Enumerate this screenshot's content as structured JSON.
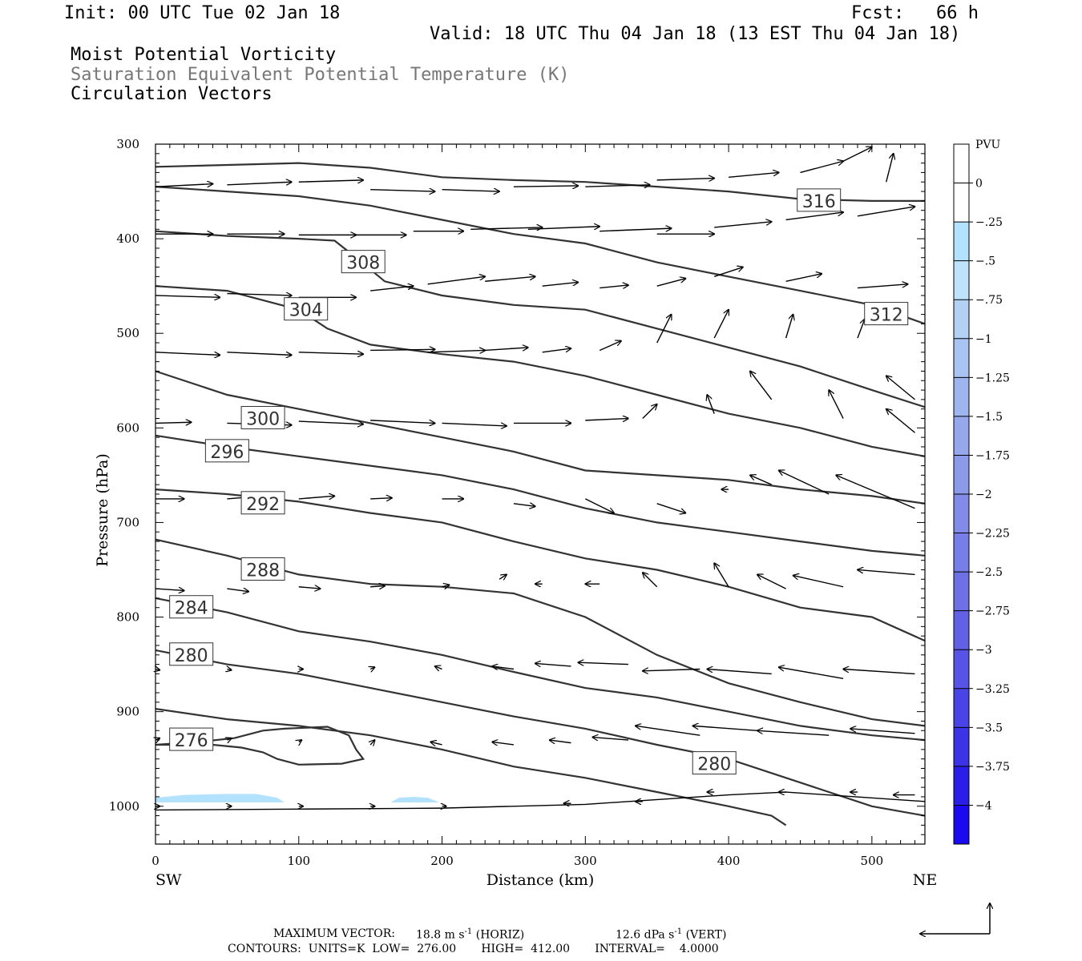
{
  "header": {
    "init": "Init: 00 UTC Tue 02 Jan 18",
    "fcst": "Fcst:   66 h",
    "valid": "Valid: 18 UTC Thu 04 Jan 18 (13 EST Thu 04 Jan 18)",
    "field1": "Moist Potential Vorticity",
    "field2": "Saturation Equivalent Potential Temperature (K)",
    "field3": "Circulation Vectors"
  },
  "footer": {
    "max_vector_label": "MAXIMUM VECTOR:",
    "max_vector_horiz": "18.8 m s",
    "horiz_tag": "(HORIZ)",
    "max_vector_vert": "12.6 dPa s",
    "vert_tag": "(VERT)",
    "exponent": "-1",
    "contours": "CONTOURS:  UNITS=K  LOW=  276.00       HIGH=  412.00       INTERVAL=    4.0000"
  },
  "colors": {
    "contour": "#333333",
    "vector": "#000000",
    "pv_fill": "#b3e2ff"
  },
  "chart_data": {
    "type": "cross-section",
    "xlabel": "Distance (km)",
    "ylabel": "Pressure (hPa)",
    "xlim": [
      0,
      537
    ],
    "ylim": [
      1040,
      300
    ],
    "x_ticks": [
      0,
      100,
      200,
      300,
      400,
      500
    ],
    "y_ticks": [
      300,
      400,
      500,
      600,
      700,
      800,
      900,
      1000
    ],
    "x_end_labels": {
      "left": "SW",
      "right": "NE"
    },
    "colorbar": {
      "unit": "PVU",
      "labels": [
        "0",
        "-.25",
        "-.5",
        "-.75",
        "-1",
        "-1.25",
        "-1.5",
        "-1.75",
        "-2",
        "-2.25",
        "-2.5",
        "-2.75",
        "-3",
        "-3.25",
        "-3.5",
        "-3.75",
        "-4"
      ],
      "colors": [
        "#ffffff",
        "#ffffff",
        "#b3e2ff",
        "#bfe3fb",
        "#b3d0f5",
        "#a9c3f2",
        "#9fb5ef",
        "#96a8ec",
        "#8c9aea",
        "#828ce8",
        "#787ee7",
        "#6e70e6",
        "#6261e6",
        "#5653e6",
        "#4944e6",
        "#3b33e6",
        "#2a1ee8",
        "#1a0af0"
      ]
    },
    "contours": [
      {
        "label": "276",
        "points": [
          [
            0,
            935
          ],
          [
            30,
            932
          ],
          [
            55,
            928
          ],
          [
            75,
            920
          ],
          [
            90,
            918
          ],
          [
            120,
            916
          ],
          [
            135,
            925
          ],
          [
            140,
            940
          ],
          [
            145,
            950
          ],
          [
            130,
            955
          ],
          [
            100,
            956
          ],
          [
            85,
            950
          ],
          [
            75,
            943
          ],
          [
            60,
            938
          ],
          [
            40,
            935
          ],
          [
            0,
            935
          ]
        ],
        "label_at": [
          25,
          930
        ]
      },
      {
        "label": "280",
        "points": [
          [
            0,
            897
          ],
          [
            50,
            908
          ],
          [
            100,
            915
          ],
          [
            150,
            925
          ],
          [
            200,
            940
          ],
          [
            250,
            958
          ],
          [
            300,
            970
          ],
          [
            350,
            985
          ],
          [
            400,
            1000
          ],
          [
            430,
            1010
          ],
          [
            440,
            1020
          ]
        ],
        "label_at": [
          390,
          955
        ]
      },
      {
        "label": "280",
        "points": [
          [
            0,
            835
          ],
          [
            50,
            850
          ],
          [
            100,
            860
          ],
          [
            150,
            875
          ],
          [
            200,
            890
          ],
          [
            250,
            905
          ],
          [
            300,
            918
          ],
          [
            350,
            935
          ],
          [
            400,
            950
          ],
          [
            450,
            975
          ],
          [
            500,
            1000
          ],
          [
            537,
            1010
          ]
        ],
        "label_at": [
          25,
          840
        ]
      },
      {
        "label": "284",
        "points": [
          [
            0,
            780
          ],
          [
            50,
            795
          ],
          [
            100,
            815
          ],
          [
            150,
            826
          ],
          [
            200,
            840
          ],
          [
            250,
            858
          ],
          [
            300,
            875
          ],
          [
            350,
            885
          ],
          [
            400,
            900
          ],
          [
            450,
            915
          ],
          [
            500,
            925
          ],
          [
            537,
            930
          ]
        ],
        "label_at": [
          25,
          790
        ]
      },
      {
        "label": "288",
        "points": [
          [
            0,
            718
          ],
          [
            50,
            735
          ],
          [
            100,
            755
          ],
          [
            150,
            765
          ],
          [
            200,
            768
          ],
          [
            250,
            775
          ],
          [
            300,
            800
          ],
          [
            350,
            840
          ],
          [
            400,
            870
          ],
          [
            450,
            890
          ],
          [
            500,
            908
          ],
          [
            537,
            915
          ]
        ],
        "label_at": [
          75,
          750
        ]
      },
      {
        "label": "292",
        "points": [
          [
            0,
            665
          ],
          [
            50,
            670
          ],
          [
            100,
            678
          ],
          [
            150,
            690
          ],
          [
            200,
            700
          ],
          [
            250,
            720
          ],
          [
            300,
            738
          ],
          [
            350,
            750
          ],
          [
            400,
            768
          ],
          [
            450,
            790
          ],
          [
            500,
            800
          ],
          [
            537,
            825
          ]
        ],
        "label_at": [
          75,
          680
        ]
      },
      {
        "label": "296",
        "points": [
          [
            0,
            608
          ],
          [
            50,
            620
          ],
          [
            100,
            630
          ],
          [
            150,
            640
          ],
          [
            200,
            650
          ],
          [
            250,
            665
          ],
          [
            300,
            685
          ],
          [
            350,
            700
          ],
          [
            400,
            710
          ],
          [
            450,
            720
          ],
          [
            500,
            730
          ],
          [
            537,
            735
          ]
        ],
        "label_at": [
          50,
          625
        ]
      },
      {
        "label": "300",
        "points": [
          [
            0,
            540
          ],
          [
            50,
            565
          ],
          [
            100,
            580
          ],
          [
            150,
            595
          ],
          [
            200,
            610
          ],
          [
            250,
            625
          ],
          [
            300,
            645
          ],
          [
            350,
            650
          ],
          [
            400,
            655
          ],
          [
            450,
            665
          ],
          [
            500,
            672
          ],
          [
            537,
            680
          ]
        ],
        "label_at": [
          75,
          590
        ]
      },
      {
        "label": "304",
        "points": [
          [
            0,
            450
          ],
          [
            50,
            455
          ],
          [
            100,
            475
          ],
          [
            120,
            495
          ],
          [
            150,
            512
          ],
          [
            200,
            522
          ],
          [
            250,
            530
          ],
          [
            300,
            545
          ],
          [
            350,
            565
          ],
          [
            400,
            585
          ],
          [
            450,
            600
          ],
          [
            500,
            620
          ],
          [
            537,
            630
          ]
        ],
        "label_at": [
          105,
          475
        ]
      },
      {
        "label": "308",
        "points": [
          [
            0,
            392
          ],
          [
            50,
            397
          ],
          [
            100,
            400
          ],
          [
            125,
            402
          ],
          [
            140,
            420
          ],
          [
            160,
            445
          ],
          [
            200,
            460
          ],
          [
            250,
            470
          ],
          [
            300,
            475
          ],
          [
            350,
            495
          ],
          [
            400,
            515
          ],
          [
            450,
            535
          ],
          [
            500,
            560
          ],
          [
            537,
            578
          ]
        ],
        "label_at": [
          145,
          425
        ]
      },
      {
        "label": "312",
        "points": [
          [
            0,
            345
          ],
          [
            50,
            350
          ],
          [
            100,
            355
          ],
          [
            150,
            365
          ],
          [
            200,
            380
          ],
          [
            250,
            395
          ],
          [
            300,
            405
          ],
          [
            350,
            425
          ],
          [
            400,
            440
          ],
          [
            450,
            455
          ],
          [
            500,
            470
          ],
          [
            537,
            490
          ]
        ],
        "label_at": [
          510,
          480
        ]
      },
      {
        "label": "316",
        "points": [
          [
            0,
            324
          ],
          [
            50,
            322
          ],
          [
            100,
            320
          ],
          [
            150,
            325
          ],
          [
            200,
            335
          ],
          [
            250,
            338
          ],
          [
            300,
            340
          ],
          [
            350,
            345
          ],
          [
            400,
            350
          ],
          [
            450,
            358
          ],
          [
            500,
            360
          ],
          [
            537,
            360
          ]
        ],
        "label_at": [
          463,
          360
        ]
      }
    ]
  }
}
